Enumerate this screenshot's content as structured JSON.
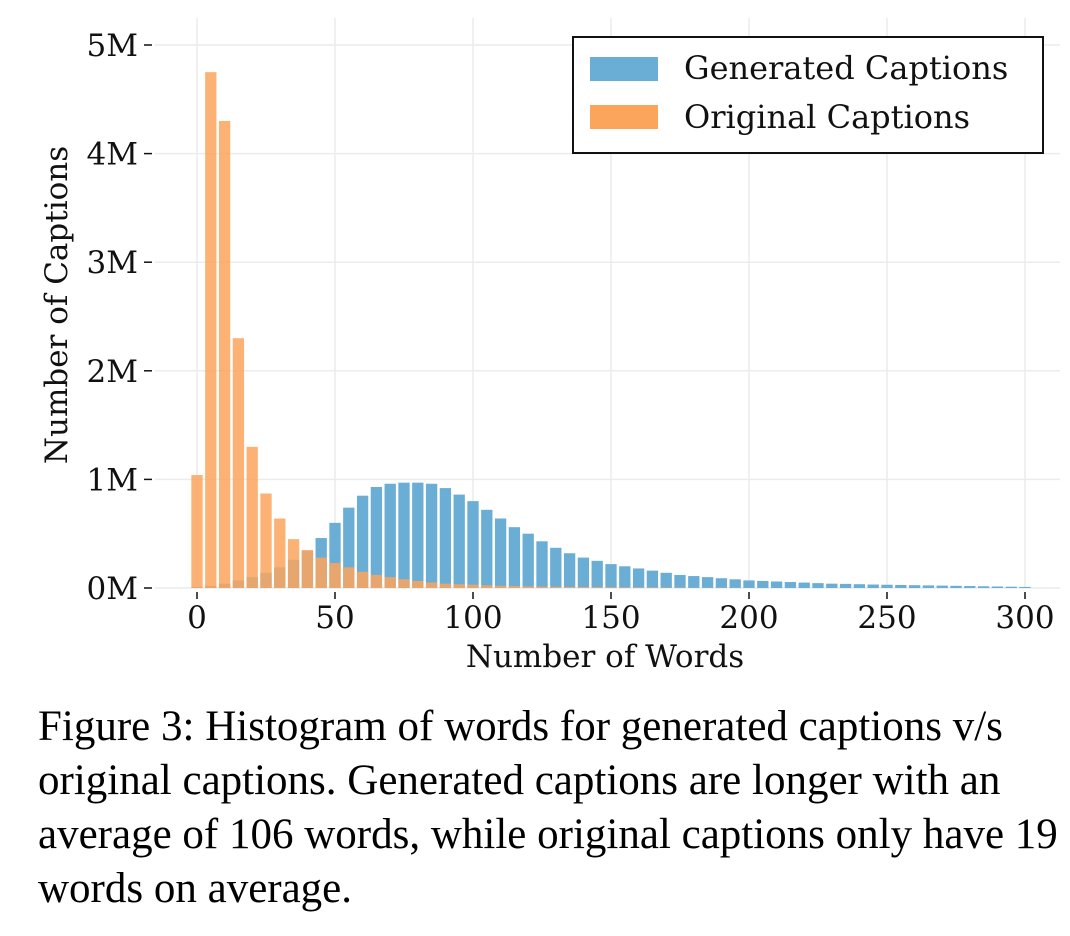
{
  "chart_data": {
    "type": "bar",
    "xlabel": "Number of Words",
    "ylabel": "Number of Captions",
    "xlim": [
      -5,
      305
    ],
    "ylim": [
      0,
      5.2
    ],
    "x_ticks": [
      0,
      50,
      100,
      150,
      200,
      250,
      300
    ],
    "y_ticks": [
      0,
      1,
      2,
      3,
      4,
      5
    ],
    "y_tick_labels": [
      "0M",
      "1M",
      "2M",
      "3M",
      "4M",
      "5M"
    ],
    "grid": true,
    "legend_position": "top-right",
    "bin_width": 5,
    "series": [
      {
        "name": "Generated Captions",
        "color": "#6aaed6",
        "x": [
          0,
          5,
          10,
          15,
          20,
          25,
          30,
          35,
          40,
          45,
          50,
          55,
          60,
          65,
          70,
          75,
          80,
          85,
          90,
          95,
          100,
          105,
          110,
          115,
          120,
          125,
          130,
          135,
          140,
          145,
          150,
          155,
          160,
          165,
          170,
          175,
          180,
          185,
          190,
          195,
          200,
          205,
          210,
          215,
          220,
          225,
          230,
          235,
          240,
          245,
          250,
          255,
          260,
          265,
          270,
          275,
          280,
          285,
          290,
          295,
          300
        ],
        "values": [
          0.01,
          0.02,
          0.04,
          0.07,
          0.1,
          0.14,
          0.19,
          0.26,
          0.34,
          0.46,
          0.6,
          0.74,
          0.85,
          0.93,
          0.96,
          0.97,
          0.97,
          0.96,
          0.92,
          0.86,
          0.8,
          0.72,
          0.64,
          0.56,
          0.5,
          0.43,
          0.37,
          0.32,
          0.28,
          0.25,
          0.22,
          0.2,
          0.18,
          0.16,
          0.14,
          0.12,
          0.11,
          0.1,
          0.09,
          0.08,
          0.07,
          0.065,
          0.06,
          0.055,
          0.05,
          0.045,
          0.04,
          0.038,
          0.035,
          0.032,
          0.03,
          0.028,
          0.026,
          0.024,
          0.022,
          0.02,
          0.018,
          0.016,
          0.014,
          0.012,
          0.01
        ]
      },
      {
        "name": "Original Captions",
        "color": "#fba55c",
        "x": [
          0,
          5,
          10,
          15,
          20,
          25,
          30,
          35,
          40,
          45,
          50,
          55,
          60,
          65,
          70,
          75,
          80,
          85,
          90,
          95,
          100,
          105,
          110,
          115,
          120,
          125,
          130,
          135,
          140,
          145,
          150,
          155,
          160,
          165,
          170,
          175,
          180,
          185,
          190,
          195,
          200
        ],
        "values": [
          1.04,
          4.75,
          4.3,
          2.3,
          1.3,
          0.87,
          0.64,
          0.45,
          0.35,
          0.28,
          0.23,
          0.19,
          0.15,
          0.12,
          0.1,
          0.08,
          0.065,
          0.05,
          0.04,
          0.035,
          0.03,
          0.025,
          0.02,
          0.018,
          0.015,
          0.013,
          0.011,
          0.01,
          0.009,
          0.008,
          0.007,
          0.006,
          0.005,
          0.005,
          0.004,
          0.004,
          0.003,
          0.003,
          0.003,
          0.002,
          0.002
        ]
      }
    ]
  },
  "caption": "Figure 3: Histogram of words for generated captions v/s original captions. Generated captions are longer with an average of 106 words, while original captions only have 19 words on average."
}
